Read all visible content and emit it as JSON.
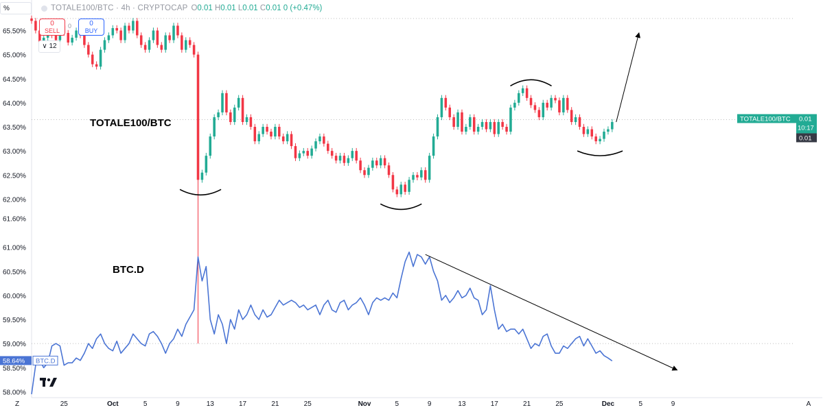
{
  "toolbar": {
    "percent_label": "%",
    "symbol_title": "TOTALE100/BTC · 4h · CRYPTOCAP",
    "ohlc": {
      "o_label": "O",
      "o": "0.01",
      "h_label": "H",
      "h": "0.01",
      "l_label": "L",
      "l": "0.01",
      "c_label": "C",
      "c": "0.01",
      "change": "0 (+0.47%)"
    },
    "sell": {
      "count": "0",
      "label": "SELL"
    },
    "buy": {
      "count": "0",
      "label": "BUY"
    },
    "spread": "0",
    "quantity": "12"
  },
  "annotations": {
    "totale_label": "TOTALE100/BTC",
    "btcd_label": "BTC.D"
  },
  "colors": {
    "up": "#22ab94",
    "down": "#f23645",
    "btcd_line": "#4a74d4",
    "guide": "#bdbdbd",
    "price_tag": "#22ab94"
  },
  "chart_data": {
    "type": "line",
    "title": "TOTALE100/BTC · 4h · CRYPTOCAP",
    "y_axis": {
      "unit": "percent",
      "ticks": [
        "65.50%",
        "65.00%",
        "64.50%",
        "64.00%",
        "63.50%",
        "63.00%",
        "62.50%",
        "62.00%",
        "61.60%",
        "61.00%",
        "60.50%",
        "60.00%",
        "59.50%",
        "59.00%",
        "58.50%",
        "58.00%"
      ]
    },
    "x_axis": {
      "ticks": [
        "Z",
        "25",
        "Oct",
        "5",
        "9",
        "13",
        "17",
        "21",
        "25",
        "Nov",
        "5",
        "9",
        "13",
        "17",
        "21",
        "25",
        "Dec",
        "5",
        "9",
        "A"
      ],
      "range_days": [
        -10,
        84
      ]
    },
    "series": [
      {
        "name": "TOTALE100/BTC",
        "style": "candles",
        "closes": [
          [
            -10,
            65.7
          ],
          [
            -9.5,
            65.5
          ],
          [
            -9,
            65.2
          ],
          [
            -8.5,
            65.35
          ],
          [
            -8,
            65.5
          ],
          [
            -7.5,
            65.4
          ],
          [
            -7,
            65.3
          ],
          [
            -6.5,
            65.6
          ],
          [
            -6,
            65.45
          ],
          [
            -5.5,
            65.25
          ],
          [
            -5,
            65.35
          ],
          [
            -4.5,
            65.5
          ],
          [
            -4,
            65.4
          ],
          [
            -3.5,
            65.2
          ],
          [
            -3,
            65.0
          ],
          [
            -2.5,
            64.8
          ],
          [
            -2,
            64.75
          ],
          [
            -1.5,
            65.1
          ],
          [
            -1,
            65.3
          ],
          [
            -0.5,
            65.4
          ],
          [
            0,
            65.55
          ],
          [
            0.5,
            65.5
          ],
          [
            1,
            65.3
          ],
          [
            1.5,
            65.6
          ],
          [
            2,
            65.5
          ],
          [
            2.5,
            65.7
          ],
          [
            3,
            65.4
          ],
          [
            3.5,
            65.2
          ],
          [
            4,
            65.1
          ],
          [
            4.5,
            65.3
          ],
          [
            5,
            65.5
          ],
          [
            5.5,
            65.2
          ],
          [
            6,
            65.1
          ],
          [
            6.5,
            65.4
          ],
          [
            7,
            65.3
          ],
          [
            7.5,
            65.6
          ],
          [
            8,
            65.4
          ],
          [
            8.5,
            65.1
          ],
          [
            9,
            65.3
          ],
          [
            9.5,
            65.2
          ],
          [
            10,
            65.0
          ],
          [
            10.5,
            62.4
          ],
          [
            11,
            62.55
          ],
          [
            11.5,
            62.9
          ],
          [
            12,
            63.3
          ],
          [
            12.5,
            63.7
          ],
          [
            13,
            63.8
          ],
          [
            13.5,
            64.2
          ],
          [
            14,
            63.8
          ],
          [
            14.5,
            63.6
          ],
          [
            15,
            63.9
          ],
          [
            15.5,
            64.1
          ],
          [
            16,
            63.6
          ],
          [
            16.5,
            63.7
          ],
          [
            17,
            63.5
          ],
          [
            17.5,
            63.2
          ],
          [
            18,
            63.35
          ],
          [
            18.5,
            63.5
          ],
          [
            19,
            63.4
          ],
          [
            19.5,
            63.3
          ],
          [
            20,
            63.5
          ],
          [
            20.5,
            63.3
          ],
          [
            21,
            63.2
          ],
          [
            21.5,
            63.35
          ],
          [
            22,
            63.1
          ],
          [
            22.5,
            62.85
          ],
          [
            23,
            62.95
          ],
          [
            23.5,
            63.0
          ],
          [
            24,
            62.9
          ],
          [
            24.5,
            63.05
          ],
          [
            25,
            63.2
          ],
          [
            25.5,
            63.3
          ],
          [
            26,
            63.15
          ],
          [
            26.5,
            63.0
          ],
          [
            27,
            62.9
          ],
          [
            27.5,
            62.8
          ],
          [
            28,
            62.9
          ],
          [
            28.5,
            62.75
          ],
          [
            29,
            62.85
          ],
          [
            29.5,
            63.0
          ],
          [
            30,
            62.8
          ],
          [
            30.5,
            62.6
          ],
          [
            31,
            62.5
          ],
          [
            31.5,
            62.65
          ],
          [
            32,
            62.8
          ],
          [
            32.5,
            62.7
          ],
          [
            33,
            62.85
          ],
          [
            33.5,
            62.7
          ],
          [
            34,
            62.5
          ],
          [
            34.5,
            62.2
          ],
          [
            35,
            62.1
          ],
          [
            35.5,
            62.3
          ],
          [
            36,
            62.15
          ],
          [
            36.5,
            62.4
          ],
          [
            37,
            62.5
          ],
          [
            37.5,
            62.45
          ],
          [
            38,
            62.6
          ],
          [
            38.5,
            62.4
          ],
          [
            39,
            62.9
          ],
          [
            39.5,
            63.3
          ],
          [
            40,
            63.7
          ],
          [
            40.5,
            64.1
          ],
          [
            41,
            63.9
          ],
          [
            41.5,
            63.7
          ],
          [
            42,
            63.5
          ],
          [
            42.5,
            63.8
          ],
          [
            43,
            63.4
          ],
          [
            43.5,
            63.5
          ],
          [
            44,
            63.7
          ],
          [
            44.5,
            63.4
          ],
          [
            45,
            63.5
          ],
          [
            45.5,
            63.6
          ],
          [
            46,
            63.45
          ],
          [
            46.5,
            63.6
          ],
          [
            47,
            63.35
          ],
          [
            47.5,
            63.6
          ],
          [
            48,
            63.5
          ],
          [
            48.5,
            63.4
          ],
          [
            49,
            63.9
          ],
          [
            49.5,
            64.0
          ],
          [
            50,
            64.2
          ],
          [
            50.5,
            64.3
          ],
          [
            51,
            64.1
          ],
          [
            51.5,
            63.95
          ],
          [
            52,
            63.85
          ],
          [
            52.5,
            63.7
          ],
          [
            53,
            64.0
          ],
          [
            53.5,
            63.9
          ],
          [
            54,
            64.1
          ],
          [
            54.5,
            64.05
          ],
          [
            55,
            63.8
          ],
          [
            55.5,
            64.1
          ],
          [
            56,
            63.85
          ],
          [
            56.5,
            63.6
          ],
          [
            57,
            63.7
          ],
          [
            57.5,
            63.5
          ],
          [
            58,
            63.35
          ],
          [
            58.5,
            63.45
          ],
          [
            59,
            63.3
          ],
          [
            59.5,
            63.2
          ],
          [
            60,
            63.25
          ],
          [
            60.5,
            63.4
          ],
          [
            61,
            63.45
          ],
          [
            61.5,
            63.6
          ]
        ]
      },
      {
        "name": "BTC.D",
        "style": "line",
        "points": [
          [
            -10,
            57.95
          ],
          [
            -9.5,
            58.55
          ],
          [
            -9,
            58.65
          ],
          [
            -8.5,
            58.5
          ],
          [
            -8,
            58.6
          ],
          [
            -7.5,
            58.95
          ],
          [
            -7,
            59.0
          ],
          [
            -6.5,
            58.95
          ],
          [
            -6,
            58.55
          ],
          [
            -5.5,
            58.6
          ],
          [
            -5,
            58.6
          ],
          [
            -4.5,
            58.7
          ],
          [
            -4,
            58.65
          ],
          [
            -3.5,
            58.8
          ],
          [
            -3,
            59.0
          ],
          [
            -2.5,
            58.9
          ],
          [
            -2,
            59.1
          ],
          [
            -1.5,
            59.2
          ],
          [
            -1,
            59.0
          ],
          [
            -0.5,
            58.9
          ],
          [
            0,
            58.85
          ],
          [
            0.5,
            59.05
          ],
          [
            1,
            58.8
          ],
          [
            1.5,
            58.9
          ],
          [
            2,
            59.0
          ],
          [
            2.5,
            59.2
          ],
          [
            3,
            59.1
          ],
          [
            3.5,
            59.0
          ],
          [
            4,
            58.95
          ],
          [
            4.5,
            59.2
          ],
          [
            5,
            59.25
          ],
          [
            5.5,
            59.15
          ],
          [
            6,
            59.0
          ],
          [
            6.5,
            58.8
          ],
          [
            7,
            59.0
          ],
          [
            7.5,
            59.1
          ],
          [
            8,
            59.3
          ],
          [
            8.5,
            59.15
          ],
          [
            9,
            59.4
          ],
          [
            9.5,
            59.55
          ],
          [
            10,
            59.7
          ],
          [
            10.5,
            60.8
          ],
          [
            11,
            60.3
          ],
          [
            11.5,
            60.6
          ],
          [
            12,
            59.5
          ],
          [
            12.5,
            59.2
          ],
          [
            13,
            59.6
          ],
          [
            13.5,
            59.4
          ],
          [
            14,
            59.0
          ],
          [
            14.5,
            59.5
          ],
          [
            15,
            59.3
          ],
          [
            15.5,
            59.7
          ],
          [
            16,
            59.5
          ],
          [
            16.5,
            59.6
          ],
          [
            17,
            59.8
          ],
          [
            17.5,
            59.6
          ],
          [
            18,
            59.5
          ],
          [
            18.5,
            59.7
          ],
          [
            19,
            59.55
          ],
          [
            19.5,
            59.6
          ],
          [
            20,
            59.75
          ],
          [
            20.5,
            59.9
          ],
          [
            21,
            59.8
          ],
          [
            21.5,
            59.85
          ],
          [
            22,
            59.9
          ],
          [
            22.5,
            59.85
          ],
          [
            23,
            59.75
          ],
          [
            23.5,
            59.8
          ],
          [
            24,
            59.7
          ],
          [
            24.5,
            59.75
          ],
          [
            25,
            59.8
          ],
          [
            25.5,
            59.6
          ],
          [
            26,
            59.8
          ],
          [
            26.5,
            59.9
          ],
          [
            27,
            59.7
          ],
          [
            27.5,
            59.65
          ],
          [
            28,
            59.85
          ],
          [
            28.5,
            59.9
          ],
          [
            29,
            59.7
          ],
          [
            29.5,
            59.8
          ],
          [
            30,
            59.85
          ],
          [
            30.5,
            59.95
          ],
          [
            31,
            59.8
          ],
          [
            31.5,
            59.6
          ],
          [
            32,
            59.85
          ],
          [
            32.5,
            59.95
          ],
          [
            33,
            59.9
          ],
          [
            33.5,
            59.95
          ],
          [
            34,
            59.9
          ],
          [
            34.5,
            60.05
          ],
          [
            35,
            59.95
          ],
          [
            35.5,
            60.35
          ],
          [
            36,
            60.7
          ],
          [
            36.5,
            60.9
          ],
          [
            37,
            60.6
          ],
          [
            37.5,
            60.85
          ],
          [
            38,
            60.8
          ],
          [
            38.5,
            60.65
          ],
          [
            39,
            60.8
          ],
          [
            39.5,
            60.5
          ],
          [
            40,
            60.3
          ],
          [
            40.5,
            59.9
          ],
          [
            41,
            60.0
          ],
          [
            41.5,
            59.85
          ],
          [
            42,
            59.95
          ],
          [
            42.5,
            60.1
          ],
          [
            43,
            59.95
          ],
          [
            43.5,
            60.0
          ],
          [
            44,
            60.15
          ],
          [
            44.5,
            59.95
          ],
          [
            45,
            59.9
          ],
          [
            45.5,
            59.6
          ],
          [
            46,
            59.7
          ],
          [
            46.5,
            60.2
          ],
          [
            47,
            59.7
          ],
          [
            47.5,
            59.3
          ],
          [
            48,
            59.4
          ],
          [
            48.5,
            59.25
          ],
          [
            49,
            59.3
          ],
          [
            49.5,
            59.3
          ],
          [
            50,
            59.2
          ],
          [
            50.5,
            59.3
          ],
          [
            51,
            59.1
          ],
          [
            51.5,
            58.9
          ],
          [
            52,
            59.0
          ],
          [
            52.5,
            58.95
          ],
          [
            53,
            59.15
          ],
          [
            53.5,
            59.2
          ],
          [
            54,
            58.95
          ],
          [
            54.5,
            58.8
          ],
          [
            55,
            58.8
          ],
          [
            55.5,
            58.95
          ],
          [
            56,
            58.9
          ],
          [
            56.5,
            59.0
          ],
          [
            57,
            59.1
          ],
          [
            57.5,
            59.15
          ],
          [
            58,
            58.95
          ],
          [
            58.5,
            59.1
          ],
          [
            59,
            58.95
          ],
          [
            59.5,
            58.8
          ],
          [
            60,
            58.85
          ],
          [
            60.5,
            58.75
          ],
          [
            61,
            58.7
          ],
          [
            61.5,
            58.64
          ]
        ]
      }
    ],
    "price_labels": {
      "totale_name": "TOTALE100/BTC",
      "totale_value": "0.01",
      "countdown": "10:17",
      "last_value": "0.01",
      "btcd_value": "58.64%",
      "btcd_name": "BTC.D"
    },
    "reference_lines": [
      63.65,
      59.0,
      65.75
    ]
  }
}
